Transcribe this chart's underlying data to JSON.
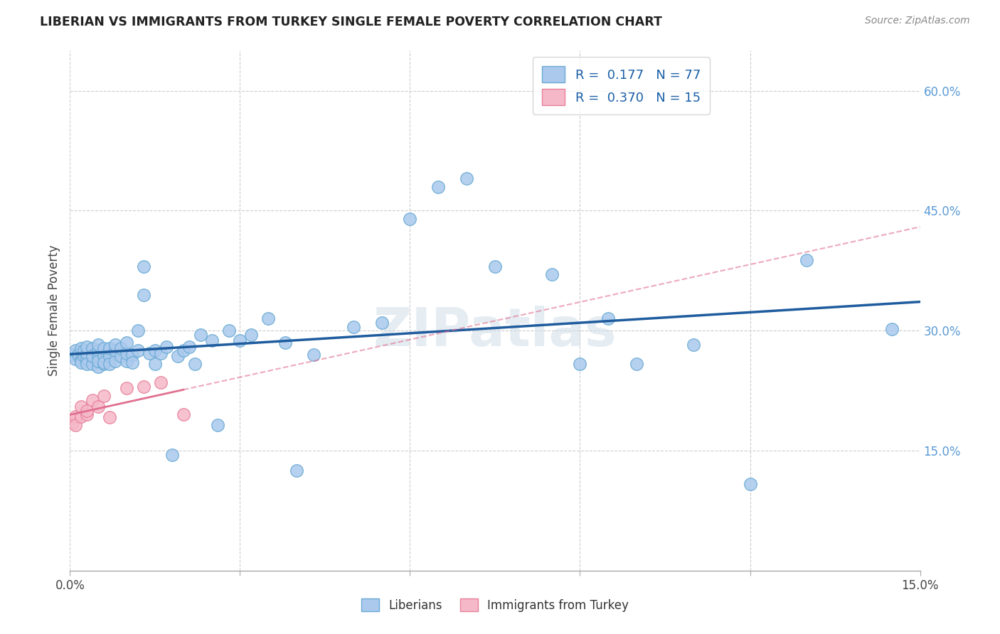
{
  "title": "LIBERIAN VS IMMIGRANTS FROM TURKEY SINGLE FEMALE POVERTY CORRELATION CHART",
  "source": "Source: ZipAtlas.com",
  "ylabel_label": "Single Female Poverty",
  "xlim": [
    0.0,
    0.15
  ],
  "ylim": [
    0.0,
    0.65
  ],
  "xtick_positions": [
    0.0,
    0.03,
    0.06,
    0.09,
    0.12,
    0.15
  ],
  "xtick_labels": [
    "0.0%",
    "",
    "",
    "",
    "",
    "15.0%"
  ],
  "ytick_positions": [
    0.15,
    0.3,
    0.45,
    0.6
  ],
  "ytick_labels": [
    "15.0%",
    "30.0%",
    "45.0%",
    "60.0%"
  ],
  "blue_color": "#aac9ed",
  "blue_edge": "#6aaad4",
  "pink_color": "#f5b8c8",
  "pink_edge": "#e8809a",
  "trend_blue": "#1f5c9e",
  "trend_pink": "#e07090",
  "watermark_text": "ZIPatlas",
  "legend_label1": "R =  0.177   N = 77",
  "legend_label2": "R =  0.370   N = 15",
  "bottom_label1": "Liberians",
  "bottom_label2": "Immigrants from Turkey",
  "liberian_x": [
    0.0005,
    0.001,
    0.001,
    0.0015,
    0.002,
    0.002,
    0.002,
    0.0025,
    0.0025,
    0.003,
    0.003,
    0.003,
    0.003,
    0.004,
    0.004,
    0.004,
    0.004,
    0.005,
    0.005,
    0.005,
    0.005,
    0.005,
    0.006,
    0.006,
    0.006,
    0.006,
    0.007,
    0.007,
    0.007,
    0.008,
    0.008,
    0.008,
    0.009,
    0.009,
    0.01,
    0.01,
    0.01,
    0.011,
    0.011,
    0.012,
    0.012,
    0.013,
    0.013,
    0.014,
    0.015,
    0.015,
    0.016,
    0.017,
    0.018,
    0.019,
    0.02,
    0.021,
    0.022,
    0.023,
    0.025,
    0.026,
    0.028,
    0.03,
    0.032,
    0.035,
    0.038,
    0.04,
    0.043,
    0.05,
    0.055,
    0.06,
    0.065,
    0.07,
    0.075,
    0.085,
    0.09,
    0.095,
    0.1,
    0.11,
    0.12,
    0.13,
    0.145
  ],
  "liberian_y": [
    0.27,
    0.265,
    0.275,
    0.27,
    0.263,
    0.278,
    0.26,
    0.268,
    0.275,
    0.265,
    0.272,
    0.258,
    0.28,
    0.258,
    0.27,
    0.278,
    0.268,
    0.255,
    0.268,
    0.275,
    0.262,
    0.282,
    0.258,
    0.268,
    0.278,
    0.26,
    0.268,
    0.278,
    0.258,
    0.262,
    0.275,
    0.282,
    0.268,
    0.278,
    0.262,
    0.272,
    0.285,
    0.27,
    0.26,
    0.275,
    0.3,
    0.345,
    0.38,
    0.272,
    0.258,
    0.275,
    0.272,
    0.28,
    0.145,
    0.268,
    0.275,
    0.28,
    0.258,
    0.295,
    0.288,
    0.182,
    0.3,
    0.288,
    0.295,
    0.315,
    0.285,
    0.125,
    0.27,
    0.305,
    0.31,
    0.44,
    0.48,
    0.49,
    0.38,
    0.37,
    0.258,
    0.315,
    0.258,
    0.282,
    0.108,
    0.388,
    0.302
  ],
  "turkey_x": [
    0.0005,
    0.001,
    0.001,
    0.002,
    0.002,
    0.003,
    0.003,
    0.004,
    0.005,
    0.006,
    0.007,
    0.01,
    0.013,
    0.016,
    0.02
  ],
  "turkey_y": [
    0.185,
    0.193,
    0.182,
    0.193,
    0.205,
    0.195,
    0.2,
    0.213,
    0.205,
    0.218,
    0.192,
    0.228,
    0.23,
    0.235,
    0.195
  ]
}
